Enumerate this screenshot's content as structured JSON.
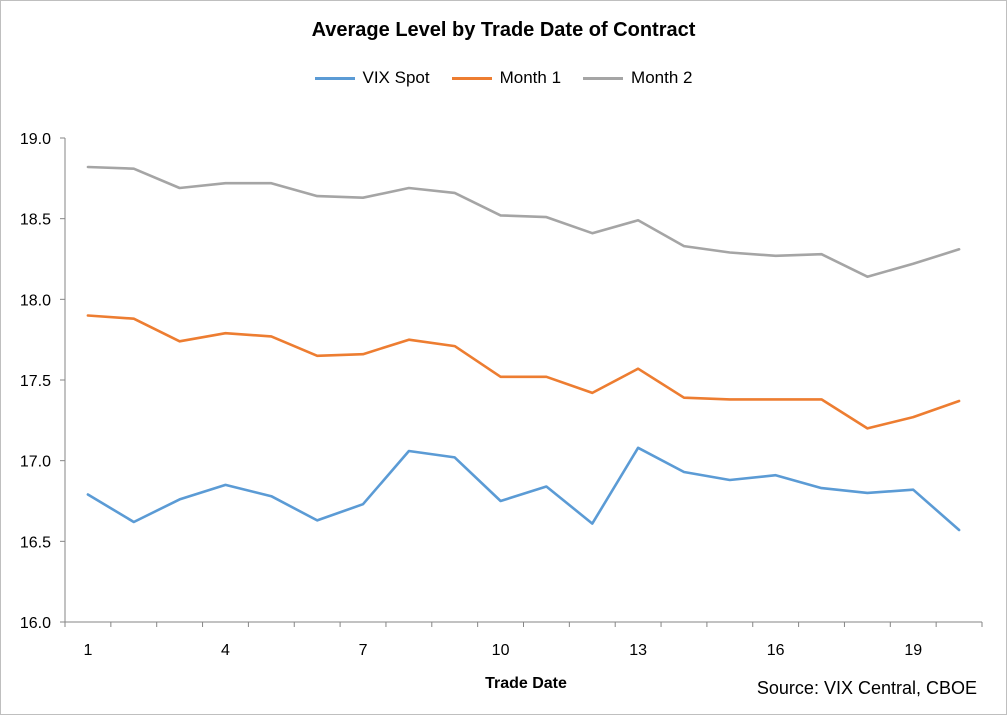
{
  "chart_data": {
    "type": "line",
    "title": "Average Level by Trade Date of Contract",
    "xlabel": "Trade Date",
    "ylabel": "",
    "x": [
      1,
      2,
      3,
      4,
      5,
      6,
      7,
      8,
      9,
      10,
      11,
      12,
      13,
      14,
      15,
      16,
      17,
      18,
      19,
      20
    ],
    "x_tick_labels": [
      "1",
      "4",
      "7",
      "10",
      "13",
      "16",
      "19"
    ],
    "x_tick_values": [
      1,
      4,
      7,
      10,
      13,
      16,
      19
    ],
    "y_tick_labels": [
      "16.0",
      "16.5",
      "17.0",
      "17.5",
      "18.0",
      "18.5",
      "19.0"
    ],
    "ylim": [
      16.0,
      19.0
    ],
    "grid": false,
    "legend_position": "top",
    "series": [
      {
        "name": "VIX Spot",
        "color": "#5b9bd5",
        "values": [
          16.79,
          16.62,
          16.76,
          16.85,
          16.78,
          16.63,
          16.73,
          17.06,
          17.02,
          16.75,
          16.84,
          16.61,
          17.08,
          16.93,
          16.88,
          16.91,
          16.83,
          16.8,
          16.82,
          16.57
        ]
      },
      {
        "name": "Month 1",
        "color": "#ed7d31",
        "values": [
          17.9,
          17.88,
          17.74,
          17.79,
          17.77,
          17.65,
          17.66,
          17.75,
          17.71,
          17.52,
          17.52,
          17.42,
          17.57,
          17.39,
          17.38,
          17.38,
          17.38,
          17.2,
          17.27,
          17.37
        ]
      },
      {
        "name": "Month 2",
        "color": "#a5a5a5",
        "values": [
          18.82,
          18.81,
          18.69,
          18.72,
          18.72,
          18.64,
          18.63,
          18.69,
          18.66,
          18.52,
          18.51,
          18.41,
          18.49,
          18.33,
          18.29,
          18.27,
          18.28,
          18.14,
          18.22,
          18.31
        ]
      }
    ],
    "source_note": "Source: VIX Central, CBOE"
  }
}
